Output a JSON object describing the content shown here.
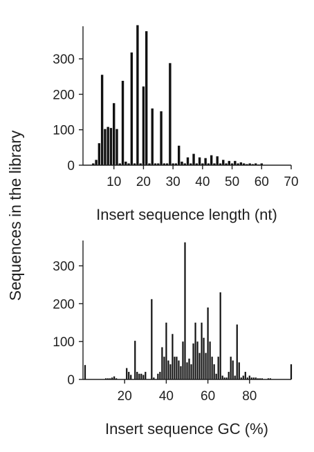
{
  "shared_ylabel": "Sequences in the library",
  "colors": {
    "bars": "#111111",
    "axis": "#1f1f1f"
  },
  "chart_data": [
    {
      "type": "bar",
      "title": "",
      "xlabel": "Insert sequence length (nt)",
      "ylabel": "Sequences in the library",
      "xlim": [
        0,
        70
      ],
      "ylim": [
        0,
        390
      ],
      "xticks": [
        10,
        20,
        30,
        40,
        50,
        60,
        70
      ],
      "yticks": [
        0,
        100,
        200,
        300
      ],
      "grid": false,
      "x": [
        1,
        2,
        3,
        4,
        5,
        6,
        7,
        8,
        9,
        10,
        11,
        12,
        13,
        14,
        15,
        16,
        17,
        18,
        19,
        20,
        21,
        22,
        23,
        24,
        25,
        26,
        27,
        28,
        29,
        30,
        31,
        32,
        33,
        34,
        35,
        36,
        37,
        38,
        39,
        40,
        41,
        42,
        43,
        44,
        45,
        46,
        47,
        48,
        49,
        50,
        51,
        52,
        53,
        54,
        55,
        56,
        57,
        58,
        59,
        60,
        61,
        62,
        63,
        64,
        65,
        66,
        67,
        68,
        69,
        70
      ],
      "values": [
        0,
        0,
        5,
        15,
        62,
        255,
        102,
        108,
        105,
        175,
        102,
        5,
        238,
        10,
        5,
        318,
        5,
        395,
        5,
        222,
        378,
        5,
        160,
        5,
        5,
        152,
        5,
        5,
        288,
        5,
        5,
        55,
        10,
        5,
        22,
        5,
        32,
        5,
        22,
        5,
        20,
        5,
        28,
        5,
        25,
        5,
        15,
        5,
        12,
        5,
        12,
        5,
        8,
        5,
        3,
        5,
        3,
        5,
        2,
        5,
        0,
        0,
        0,
        0,
        0,
        0,
        0,
        0,
        0,
        0
      ]
    },
    {
      "type": "bar",
      "title": "",
      "xlabel": "Insert sequence GC (%)",
      "ylabel": "Sequences in the library",
      "xlim": [
        0,
        100
      ],
      "ylim": [
        0,
        365
      ],
      "xticks": [
        20,
        40,
        60,
        80
      ],
      "yticks": [
        0,
        100,
        200,
        300
      ],
      "grid": false,
      "x": [
        1,
        2,
        3,
        4,
        5,
        6,
        7,
        8,
        9,
        10,
        11,
        12,
        13,
        14,
        15,
        16,
        17,
        18,
        19,
        20,
        21,
        22,
        23,
        24,
        25,
        26,
        27,
        28,
        29,
        30,
        31,
        32,
        33,
        34,
        35,
        36,
        37,
        38,
        39,
        40,
        41,
        42,
        43,
        44,
        45,
        46,
        47,
        48,
        49,
        50,
        51,
        52,
        53,
        54,
        55,
        56,
        57,
        58,
        59,
        60,
        61,
        62,
        63,
        64,
        65,
        66,
        67,
        68,
        69,
        70,
        71,
        72,
        73,
        74,
        75,
        76,
        77,
        78,
        79,
        80,
        81,
        82,
        83,
        84,
        85,
        86,
        87,
        88,
        89,
        90,
        91,
        92,
        93,
        94,
        95,
        96,
        97,
        98,
        99,
        100
      ],
      "values": [
        38,
        0,
        0,
        0,
        0,
        0,
        0,
        0,
        0,
        0,
        3,
        3,
        3,
        5,
        8,
        3,
        0,
        0,
        0,
        0,
        30,
        20,
        12,
        0,
        102,
        20,
        15,
        15,
        12,
        20,
        0,
        0,
        212,
        5,
        0,
        15,
        20,
        85,
        60,
        150,
        50,
        40,
        120,
        60,
        60,
        50,
        35,
        100,
        362,
        45,
        55,
        40,
        95,
        150,
        100,
        70,
        150,
        110,
        70,
        190,
        100,
        60,
        40,
        15,
        60,
        230,
        10,
        5,
        5,
        20,
        60,
        50,
        10,
        145,
        45,
        5,
        10,
        20,
        5,
        10,
        5,
        5,
        5,
        3,
        3,
        3,
        0,
        0,
        3,
        3,
        0,
        0,
        0,
        0,
        0,
        0,
        0,
        0,
        0,
        40
      ]
    }
  ]
}
